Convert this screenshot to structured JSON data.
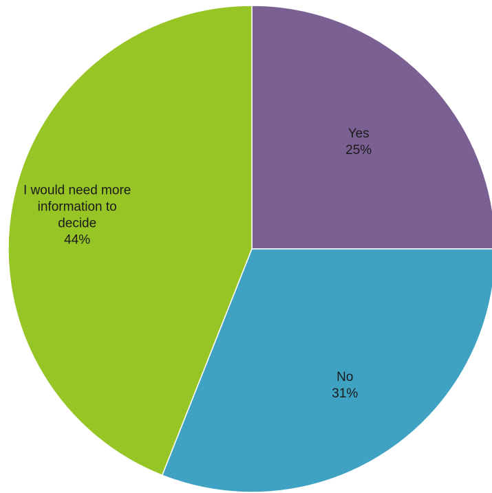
{
  "chart_data": {
    "type": "pie",
    "title": "",
    "start_angle_deg": 0,
    "direction": "clockwise",
    "slices": [
      {
        "name": "Yes",
        "label_lines": [
          "Yes"
        ],
        "value": 25,
        "value_label": "25%",
        "color": "#7b6193"
      },
      {
        "name": "No",
        "label_lines": [
          "No"
        ],
        "value": 31,
        "value_label": "31%",
        "color": "#3fa2c3"
      },
      {
        "name": "I would need more information to decide",
        "label_lines": [
          "I would need more",
          "information to",
          "decide"
        ],
        "value": 44,
        "value_label": "44%",
        "color": "#97c526"
      }
    ]
  }
}
